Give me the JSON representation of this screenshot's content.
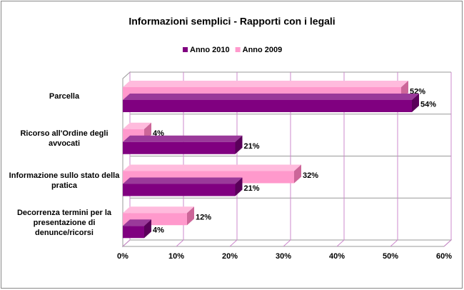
{
  "chart_data": {
    "type": "bar3d_horizontal",
    "title": "Informazioni semplici - Rapporti con i legali",
    "categories": [
      "Parcella",
      "Ricorso all'Ordine degli avvocati",
      "Informazione sullo stato della pratica",
      "Decorrenza termini per la presentazione di denunce/ricorsi"
    ],
    "series": [
      {
        "name": "Anno 2010",
        "color": "#800080",
        "values": [
          54,
          21,
          21,
          4
        ],
        "value_labels": [
          "54%",
          "21%",
          "21%",
          "4%"
        ]
      },
      {
        "name": "Anno 2009",
        "color": "#ff99cc",
        "values": [
          52,
          4,
          32,
          12
        ],
        "value_labels": [
          "52%",
          "4%",
          "32%",
          "12%"
        ]
      }
    ],
    "xlim": [
      0,
      60
    ],
    "xticks": [
      {
        "value": 0,
        "label": "0%"
      },
      {
        "value": 10,
        "label": "10%"
      },
      {
        "value": 20,
        "label": "20%"
      },
      {
        "value": 30,
        "label": "30%"
      },
      {
        "value": 40,
        "label": "40%"
      },
      {
        "value": 50,
        "label": "50%"
      },
      {
        "value": 60,
        "label": "60%"
      }
    ],
    "grid": true,
    "legend": "top"
  }
}
